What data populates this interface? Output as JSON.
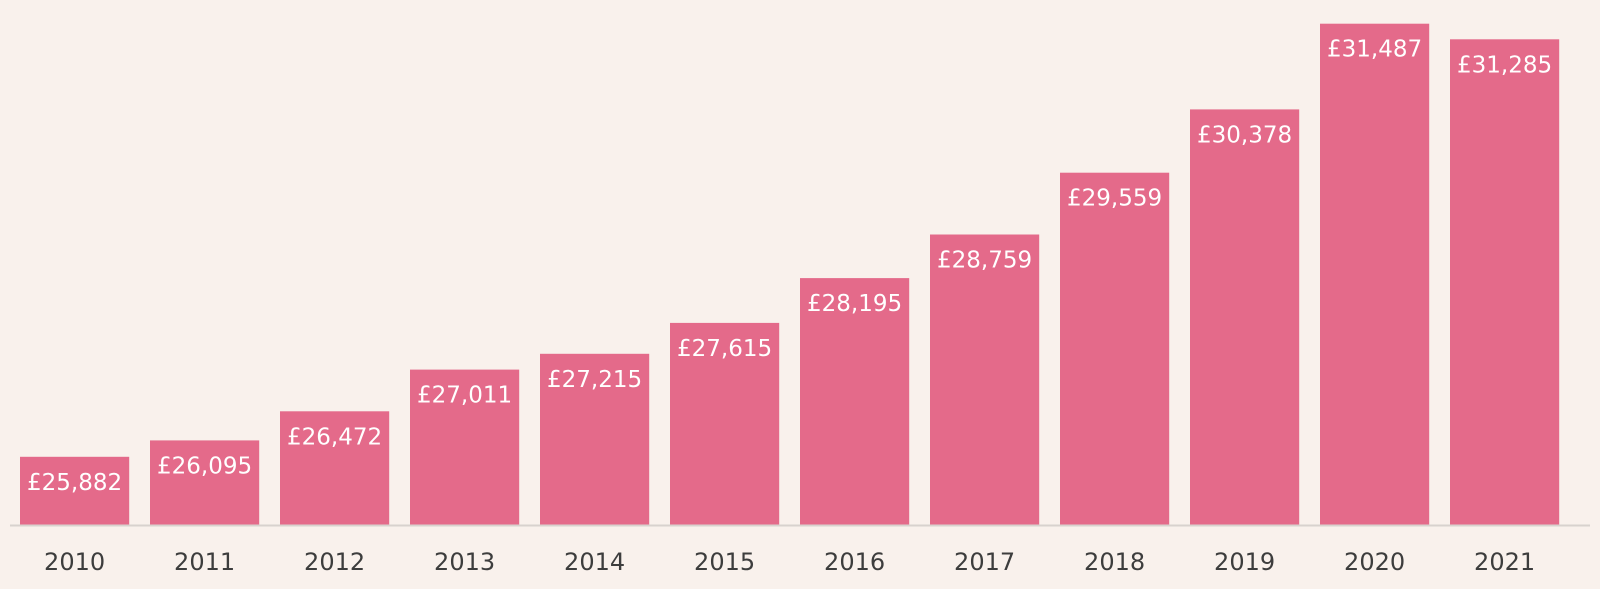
{
  "chart_data": {
    "type": "bar",
    "title": "",
    "xlabel": "",
    "ylabel": "",
    "categories": [
      "2010",
      "2011",
      "2012",
      "2013",
      "2014",
      "2015",
      "2016",
      "2017",
      "2018",
      "2019",
      "2020",
      "2021"
    ],
    "values": [
      25882,
      26095,
      26472,
      27011,
      27215,
      27615,
      28195,
      28759,
      29559,
      30378,
      31487,
      31285
    ],
    "data_labels": [
      "£25,882",
      "£26,095",
      "£26,472",
      "£27,011",
      "£27,215",
      "£27,615",
      "£28,195",
      "£28,759",
      "£29,559",
      "£30,378",
      "£31,487",
      "£31,285"
    ],
    "ylim": [
      25000,
      31600
    ],
    "grid": false,
    "legend": "none",
    "colors": {
      "bar": "#e46a8a",
      "background": "#f9f1ec",
      "baseline": "#d8d2ce",
      "tick_text": "#3d3d3d",
      "label_text": "#ffffff"
    }
  }
}
